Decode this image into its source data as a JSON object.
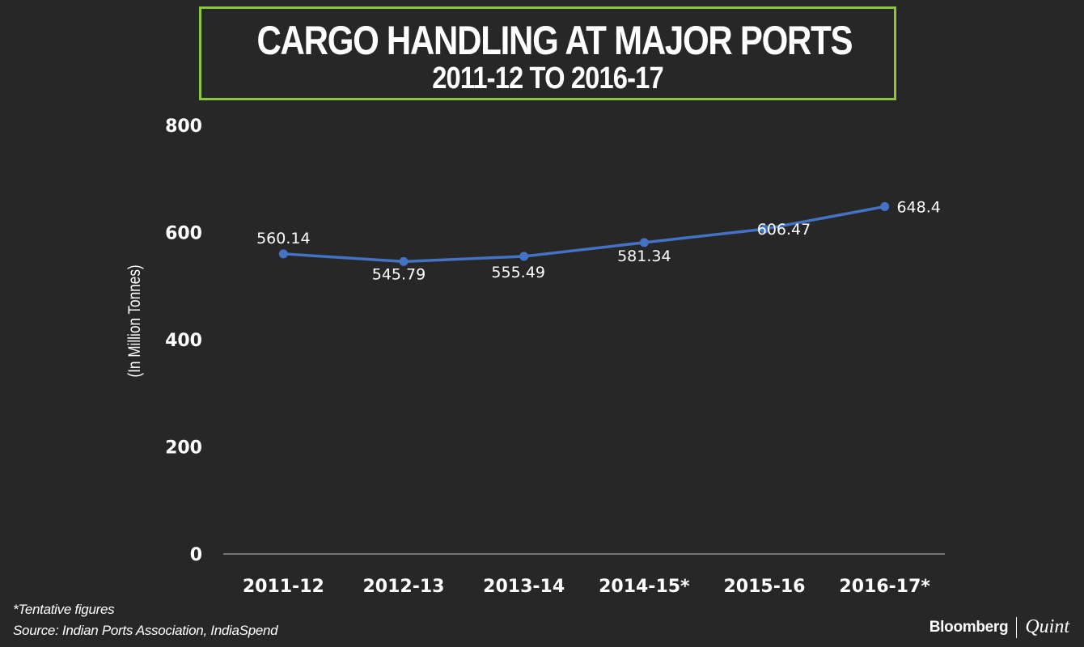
{
  "title": "CARGO HANDLING AT MAJOR PORTS",
  "subtitle": "2011-12 TO 2016-17",
  "footnotes": {
    "note": "*Tentative figures",
    "source": "Source: Indian Ports Association, IndiaSpend"
  },
  "branding": {
    "name": "Bloomberg",
    "partner": "Quint"
  },
  "colors": {
    "background": "#272727",
    "line": "#4472c4",
    "title_border": "#8cc63f"
  },
  "chart_data": {
    "type": "line",
    "title": "CARGO HANDLING AT MAJOR PORTS",
    "subtitle": "2011-12 TO 2016-17",
    "xlabel": "",
    "ylabel": "(In Million Tonnes)",
    "categories": [
      "2011-12",
      "2012-13",
      "2013-14",
      "2014-15*",
      "2015-16",
      "2016-17*"
    ],
    "series": [
      {
        "values": [
          560.14,
          545.79,
          555.49,
          581.34,
          606.47,
          648.4
        ]
      }
    ],
    "data_labels": [
      "560.14",
      "545.79",
      "555.49",
      "581.34",
      "606.47",
      "648.4"
    ],
    "ylim": [
      0,
      800
    ],
    "yticks": [
      0,
      200,
      400,
      600,
      800
    ],
    "grid": false,
    "legend": "none"
  }
}
